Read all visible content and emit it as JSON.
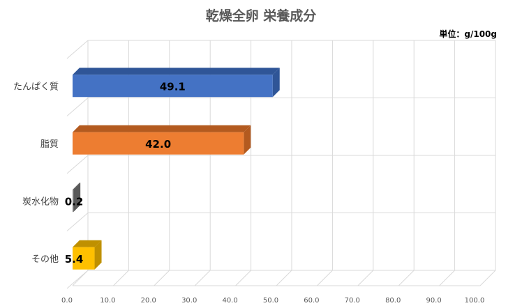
{
  "chart_data": {
    "type": "bar",
    "orientation": "horizontal",
    "title": "乾燥全卵 栄養成分",
    "unit_label": "単位：g/100g",
    "categories": [
      "たんぱく質",
      "脂質",
      "炭水化物",
      "その他"
    ],
    "values": [
      49.1,
      42.0,
      0.2,
      5.4
    ],
    "value_labels": [
      "49.1",
      "42.0",
      "0.2",
      "5.4"
    ],
    "colors": [
      "#4472C4",
      "#ED7D31",
      "#808080",
      "#FFC000"
    ],
    "side_colors": [
      "#2F5597",
      "#B35A1F",
      "#595959",
      "#BF9000"
    ],
    "xlim": [
      0,
      100
    ],
    "x_ticks": [
      "0.0",
      "10.0",
      "20.0",
      "30.0",
      "40.0",
      "50.0",
      "60.0",
      "70.0",
      "80.0",
      "90.0",
      "100.0"
    ],
    "grid": true,
    "legend": "none",
    "style": "3d"
  }
}
